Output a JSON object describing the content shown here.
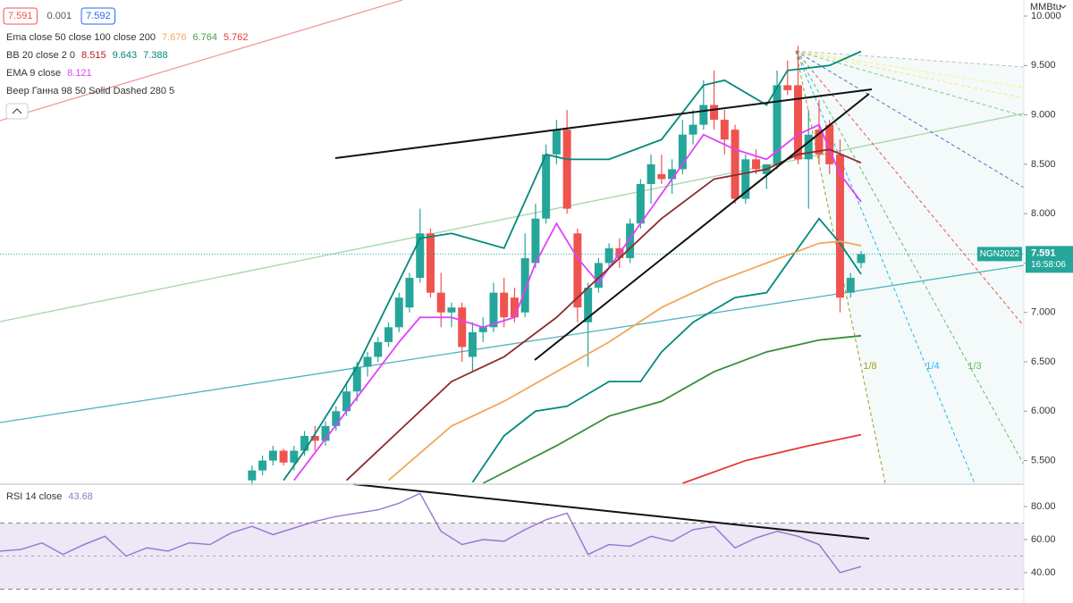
{
  "chart_data": [
    {
      "type": "candlestick",
      "unit": "MMBtu",
      "price_boxes": [
        7.591,
        0.001,
        7.592
      ],
      "legend": [
        {
          "text": "Ema close 50 close 100 close 200",
          "values": [
            7.676,
            6.764,
            5.762
          ],
          "colors": [
            "#f2a65a",
            "#43a047",
            "#e53935"
          ]
        },
        {
          "text": "BB 20 close 2 0",
          "values": [
            8.515,
            9.643,
            7.388
          ],
          "colors": [
            "#b71c1c",
            "#00897b",
            "#00897b"
          ]
        },
        {
          "text": "EMA 9 close",
          "values": [
            8.121
          ],
          "colors": [
            "#e040fb"
          ]
        },
        {
          "text": "Веер Ганна 98 50 Solid Dashed 280 5",
          "values": [],
          "colors": []
        }
      ],
      "fan_labels": [
        "1/8",
        "1/4",
        "1/3"
      ],
      "last_price": {
        "symbol": "NGN2022",
        "value": 7.591,
        "time": "16:58:06"
      },
      "up_color": "#26a69a",
      "down_color": "#ef5350",
      "open": [
        5.3,
        5.4,
        5.5,
        5.6,
        5.48,
        5.6,
        5.75,
        5.7,
        5.85,
        6.0,
        6.2,
        6.45,
        6.55,
        6.7,
        6.85,
        7.05,
        7.35,
        7.8,
        7.2,
        7.0,
        7.05,
        6.55,
        6.8,
        6.85,
        7.2,
        7.15,
        7.0,
        7.5,
        7.95,
        8.6,
        8.85,
        7.8,
        6.9,
        7.25,
        7.5,
        7.65,
        7.55,
        7.9,
        8.3,
        8.4,
        8.35,
        8.45,
        8.8,
        8.9,
        9.1,
        8.95,
        8.85,
        8.15,
        8.55,
        8.4,
        8.5,
        9.3,
        9.3,
        8.55,
        8.85,
        8.9,
        8.6,
        7.2,
        7.5
      ],
      "high": [
        5.45,
        5.55,
        5.65,
        5.62,
        5.65,
        5.8,
        5.85,
        5.9,
        6.05,
        6.3,
        6.5,
        6.6,
        6.75,
        6.9,
        7.2,
        7.4,
        8.05,
        7.85,
        7.4,
        7.1,
        7.1,
        6.9,
        6.95,
        7.3,
        7.35,
        7.25,
        7.8,
        8.1,
        8.7,
        8.95,
        9.05,
        7.85,
        7.3,
        7.55,
        7.7,
        7.75,
        7.95,
        8.35,
        8.6,
        8.6,
        8.55,
        8.95,
        9.05,
        9.35,
        9.45,
        9.05,
        8.9,
        8.6,
        8.65,
        8.5,
        9.45,
        9.55,
        9.7,
        9.05,
        9.15,
        8.95,
        8.75,
        7.4,
        7.62
      ],
      "low": [
        5.25,
        5.35,
        5.45,
        5.45,
        5.4,
        5.55,
        5.6,
        5.65,
        5.8,
        5.95,
        6.1,
        6.35,
        6.5,
        6.65,
        6.8,
        7.0,
        7.3,
        7.15,
        6.85,
        6.85,
        6.5,
        6.4,
        6.7,
        6.8,
        6.85,
        6.9,
        6.95,
        7.45,
        7.9,
        8.5,
        8.0,
        6.9,
        6.45,
        7.2,
        7.45,
        7.45,
        7.5,
        7.85,
        8.1,
        8.3,
        8.2,
        8.4,
        8.7,
        8.85,
        8.85,
        8.6,
        8.1,
        8.1,
        8.4,
        8.25,
        8.45,
        9.2,
        8.5,
        8.05,
        8.5,
        8.4,
        7.0,
        7.15,
        7.45
      ],
      "close": [
        5.4,
        5.5,
        5.6,
        5.48,
        5.6,
        5.75,
        5.7,
        5.85,
        6.0,
        6.2,
        6.45,
        6.55,
        6.7,
        6.85,
        7.15,
        7.35,
        7.8,
        7.2,
        7.0,
        7.05,
        6.65,
        6.8,
        6.85,
        7.2,
        6.95,
        6.95,
        7.55,
        7.95,
        8.6,
        8.85,
        8.05,
        7.05,
        7.25,
        7.5,
        7.65,
        7.55,
        7.9,
        8.3,
        8.5,
        8.35,
        8.45,
        8.8,
        8.9,
        9.1,
        8.95,
        8.75,
        8.15,
        8.55,
        8.45,
        8.5,
        9.3,
        9.25,
        8.55,
        8.8,
        8.6,
        8.5,
        7.15,
        7.35,
        7.59
      ],
      "lines": [
        {
          "color": "#e040fb",
          "x": [
            4,
            9,
            14,
            16,
            19,
            22,
            25,
            27,
            29,
            31,
            33,
            36,
            39,
            43,
            46,
            49,
            52,
            54,
            56,
            58
          ],
          "values": [
            5.3,
            6.0,
            6.7,
            6.95,
            6.95,
            6.85,
            6.95,
            7.5,
            7.9,
            7.55,
            7.3,
            7.75,
            8.2,
            8.8,
            8.65,
            8.55,
            8.8,
            8.9,
            8.4,
            8.121
          ]
        },
        {
          "color": "#00897b",
          "x": [
            3,
            5,
            10,
            16,
            19,
            24,
            28,
            30,
            34,
            39,
            43,
            45,
            49,
            51,
            55,
            58
          ],
          "values": [
            5.3,
            5.6,
            6.45,
            7.75,
            7.8,
            7.65,
            8.6,
            8.55,
            8.55,
            8.75,
            9.3,
            9.35,
            9.1,
            9.45,
            9.5,
            9.643
          ]
        },
        {
          "color": "#00897b",
          "x": [
            21,
            24,
            27,
            30,
            34,
            37,
            39,
            42,
            46,
            49,
            51,
            54,
            56,
            58
          ],
          "values": [
            5.28,
            5.75,
            6.0,
            6.05,
            6.3,
            6.3,
            6.6,
            6.9,
            7.15,
            7.2,
            7.5,
            7.95,
            7.7,
            7.388
          ]
        },
        {
          "color": "#8d2b2b",
          "x": [
            9,
            14,
            19,
            24,
            29,
            34,
            39,
            44,
            49,
            52,
            55,
            58
          ],
          "values": [
            5.3,
            5.8,
            6.3,
            6.55,
            6.95,
            7.45,
            7.95,
            8.35,
            8.45,
            8.6,
            8.65,
            8.515
          ]
        },
        {
          "color": "#f2a65a",
          "x": [
            13,
            19,
            24,
            29,
            34,
            39,
            44,
            49,
            54,
            56,
            58
          ],
          "values": [
            5.3,
            5.85,
            6.1,
            6.4,
            6.7,
            7.05,
            7.3,
            7.5,
            7.7,
            7.72,
            7.676
          ]
        },
        {
          "color": "#388e3c",
          "x": [
            22,
            29,
            34,
            39,
            44,
            49,
            54,
            58
          ],
          "values": [
            5.27,
            5.65,
            5.95,
            6.1,
            6.4,
            6.6,
            6.72,
            6.764
          ]
        },
        {
          "color": "#e53935",
          "x": [
            41,
            47,
            53,
            58
          ],
          "values": [
            5.27,
            5.5,
            5.65,
            5.762
          ]
        }
      ],
      "xlim": [
        -24,
        73.5
      ],
      "ylim": [
        5.27,
        10.163
      ],
      "yticks": [
        {
          "value": 10,
          "label": "10.000"
        },
        {
          "value": 9.5,
          "label": "9.500"
        },
        {
          "value": 9,
          "label": "9.000"
        },
        {
          "value": 8.5,
          "label": "8.500"
        },
        {
          "value": 8,
          "label": "8.000"
        },
        {
          "value": 7.5,
          "label": "7.500"
        },
        {
          "value": 7,
          "label": "7.000"
        },
        {
          "value": 6.5,
          "label": "6.500"
        },
        {
          "value": 6,
          "label": "6.000"
        },
        {
          "value": 5.5,
          "label": "5.500"
        }
      ]
    },
    {
      "type": "line",
      "title": "RSI 14 close",
      "last": 43.68,
      "color": "#9575cd",
      "x": [
        -24,
        -22,
        -20,
        -18,
        -16,
        -14,
        -12,
        -10,
        -8,
        -6,
        -4,
        -2,
        0,
        2,
        4,
        6,
        8,
        10,
        12,
        14,
        16,
        18,
        20,
        22,
        24,
        26,
        28,
        30,
        32,
        34,
        36,
        38,
        40,
        42,
        44,
        46,
        48,
        50,
        52,
        54,
        56,
        58
      ],
      "values": [
        53,
        54,
        58,
        51,
        57,
        62,
        50,
        55,
        53,
        58,
        57,
        64,
        68,
        63,
        67,
        71,
        74,
        76,
        78,
        82,
        88,
        65,
        57,
        60,
        59,
        66,
        72,
        76,
        51,
        57,
        56,
        62,
        59,
        66,
        68,
        55,
        61,
        65,
        62,
        57,
        40,
        43.68
      ],
      "bands": [
        30,
        70
      ],
      "midline": 50,
      "xlim": [
        -24,
        73.5
      ],
      "ylim": [
        21.6,
        93
      ],
      "yticks": [
        {
          "value": 80,
          "label": "80.00"
        },
        {
          "value": 60,
          "label": "60.00"
        },
        {
          "value": 40,
          "label": "40.00"
        }
      ]
    }
  ]
}
